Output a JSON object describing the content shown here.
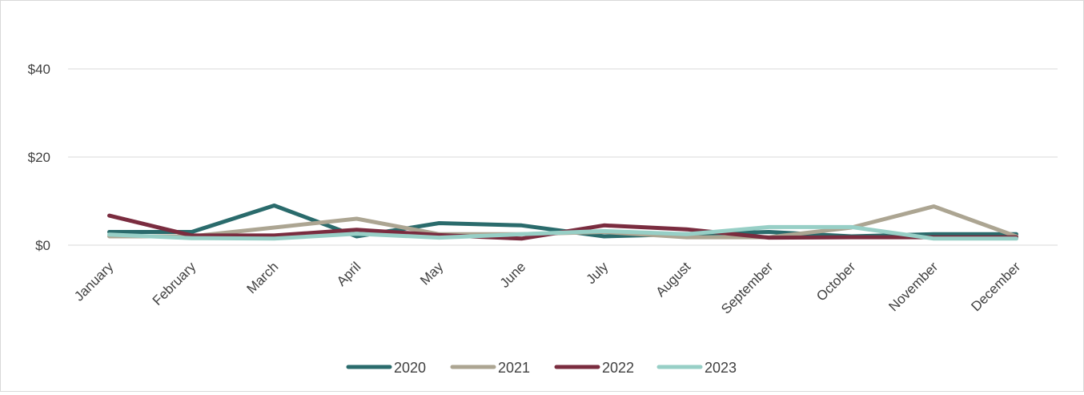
{
  "chart_data": {
    "type": "line",
    "categories": [
      "January",
      "February",
      "March",
      "April",
      "May",
      "June",
      "July",
      "August",
      "September",
      "October",
      "November",
      "December"
    ],
    "series": [
      {
        "name": "2020",
        "color": "#2a6b6c",
        "values": [
          3,
          3,
          9,
          2,
          5,
          4.5,
          2,
          2.5,
          3,
          2,
          2.5,
          2.5
        ]
      },
      {
        "name": "2021",
        "color": "#aca592",
        "values": [
          2,
          2,
          4,
          6,
          2.5,
          2.5,
          3,
          1.8,
          1.8,
          4,
          8.8,
          2
        ]
      },
      {
        "name": "2022",
        "color": "#7a2c3f",
        "values": [
          6.7,
          2.2,
          2.2,
          3.5,
          2.3,
          1.5,
          4.5,
          3.6,
          1.7,
          1.8,
          1.8,
          1.8
        ]
      },
      {
        "name": "2023",
        "color": "#97cfc6",
        "values": [
          2.4,
          1.6,
          1.5,
          2.6,
          1.7,
          2.5,
          3.2,
          2.5,
          4.1,
          4.1,
          1.5,
          1.5
        ]
      }
    ],
    "yticks": [
      "$0",
      "$20",
      "$40"
    ],
    "ytick_values": [
      0,
      20,
      40
    ],
    "ylim": [
      0,
      50
    ],
    "grid": true,
    "legend_position": "bottom"
  }
}
